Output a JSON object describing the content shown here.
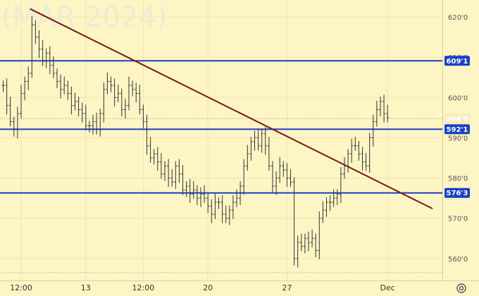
{
  "watermark": "(MAR 2024)",
  "chart_data": {
    "type": "candlestick",
    "ylim": [
      555.6,
      624.2
    ],
    "x_ticks": [
      {
        "label": "12:00",
        "i": 5
      },
      {
        "label": "13",
        "i": 23
      },
      {
        "label": "12:00",
        "i": 39
      },
      {
        "label": "20",
        "i": 57
      },
      {
        "label": "27",
        "i": 79
      },
      {
        "label": "Dec",
        "i": 107
      }
    ],
    "y_ticks": [
      560,
      570,
      580,
      590,
      600,
      620
    ],
    "y_tick_labels": [
      "560'0",
      "570'0",
      "580'0",
      "590'0",
      "600'0",
      "620'0"
    ],
    "y_tick_label_partial": "610'0",
    "last_price": {
      "value": 594.75,
      "label": "594'6"
    },
    "horizontal_levels": [
      {
        "value": 609.1,
        "label": "609'1"
      },
      {
        "value": 592.1,
        "label": "592'1"
      },
      {
        "value": 576.3,
        "label": "576'3"
      }
    ],
    "dotted_levels": [
      594.75,
      556.5
    ],
    "trendline": {
      "from": {
        "i": 7.5,
        "value": 622.0
      },
      "to": {
        "i": 119.5,
        "value": 572.4
      }
    },
    "closes": [
      603,
      598,
      594,
      592,
      596,
      601,
      604,
      606,
      618,
      615,
      612,
      609,
      611,
      608,
      606,
      604,
      602,
      603,
      601,
      598,
      599,
      597,
      596,
      593,
      593,
      594,
      592,
      596,
      602,
      604,
      603,
      600,
      601,
      597,
      598,
      603,
      602,
      601,
      597,
      594,
      588,
      585,
      586,
      584,
      581,
      583,
      580,
      579,
      583,
      581,
      577,
      578,
      576,
      577,
      575,
      576,
      575,
      573,
      571,
      574,
      574,
      571,
      570,
      572,
      574,
      575,
      578,
      583,
      586,
      589,
      590,
      588,
      591,
      588,
      583,
      578,
      580,
      583,
      582,
      580,
      579,
      560,
      564,
      563,
      565,
      564,
      565,
      562,
      570,
      572,
      574,
      574,
      575,
      576,
      581,
      583,
      586,
      588,
      588,
      586,
      584,
      583,
      590,
      594,
      597,
      599,
      596,
      595
    ],
    "line_color": "#7b1818",
    "level_color": "#1a3fc4"
  },
  "ui": {
    "settings_icon": "gear-icon"
  }
}
